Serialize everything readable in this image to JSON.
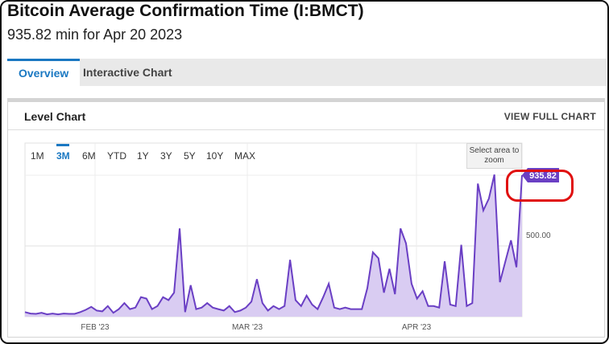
{
  "header": {
    "title": "Bitcoin Average Confirmation Time (I:BMCT)",
    "subtitle": "935.82 min for Apr 20 2023"
  },
  "tabs": [
    {
      "label": "Overview",
      "active": true
    },
    {
      "label": "Interactive Chart",
      "active": false
    }
  ],
  "panel": {
    "title": "Level Chart",
    "link": "VIEW FULL CHART"
  },
  "ranges": [
    {
      "label": "1M",
      "active": false
    },
    {
      "label": "3M",
      "active": true
    },
    {
      "label": "6M",
      "active": false
    },
    {
      "label": "YTD",
      "active": false
    },
    {
      "label": "1Y",
      "active": false
    },
    {
      "label": "3Y",
      "active": false
    },
    {
      "label": "5Y",
      "active": false
    },
    {
      "label": "10Y",
      "active": false
    },
    {
      "label": "MAX",
      "active": false
    }
  ],
  "zoom_hint": "Select area to zoom",
  "colors": {
    "accent": "#1a78c2",
    "series": "#6a3fc4",
    "fill": "#d9ccf2",
    "callout": "#e01010"
  },
  "chart_data": {
    "type": "area",
    "x_start": "2023-01-20",
    "x_end": "2023-04-20",
    "x_tick_labels": [
      "FEB '23",
      "MAR '23",
      "APR '23"
    ],
    "y_tick_labels": [
      "500.00"
    ],
    "ylim": [
      0,
      1000
    ],
    "last_value_label": "935.82",
    "grid": true,
    "values": [
      20,
      10,
      8,
      15,
      5,
      10,
      5,
      10,
      8,
      8,
      20,
      35,
      55,
      30,
      25,
      60,
      15,
      40,
      80,
      40,
      50,
      120,
      110,
      40,
      60,
      120,
      100,
      150,
      580,
      20,
      200,
      40,
      50,
      80,
      50,
      40,
      30,
      60,
      20,
      30,
      50,
      90,
      240,
      80,
      30,
      60,
      40,
      60,
      370,
      100,
      60,
      130,
      70,
      40,
      120,
      210,
      50,
      40,
      50,
      40,
      40,
      40,
      180,
      420,
      380,
      150,
      310,
      140,
      580,
      480,
      210,
      110,
      160,
      60,
      60,
      50,
      360,
      70,
      60,
      470,
      60,
      80,
      880,
      700,
      780,
      940,
      220,
      360,
      500,
      320,
      935.82
    ]
  }
}
